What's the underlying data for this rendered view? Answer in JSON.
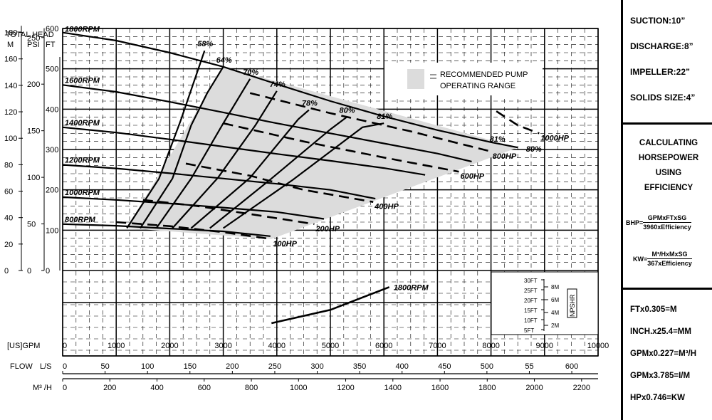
{
  "axis_titles": {
    "total_head": "TOTAL  HEAD",
    "m": "M",
    "psi": "PSI",
    "ft": "FT",
    "gpm": "[US]GPM",
    "flow": "FLOW",
    "ls": "L/S",
    "m3h": "M³ /H"
  },
  "legend": {
    "line1": "RECOMMENDED PUMP",
    "line2": "OPERATING RANGE",
    "fill": "#dcdcdc"
  },
  "npshr": {
    "label": "NPSHR",
    "ft_ticks": [
      "30FT",
      "25FT",
      "20FT",
      "15FT",
      "10FT",
      "5FT"
    ],
    "m_ticks": [
      "8M",
      "6M",
      "4M",
      "2M"
    ]
  },
  "specs": [
    {
      "name": "suction",
      "text": "SUCTION:10”"
    },
    {
      "name": "discharge",
      "text": "DISCHARGE:8”"
    },
    {
      "name": "impeller",
      "text": "IMPELLER:22”"
    },
    {
      "name": "solids",
      "text": "SOLIDS SIZE:4”"
    }
  ],
  "calc": {
    "title_lines": [
      "CALCULATING",
      "HORSEPOWER",
      "USING",
      "EFFICIENCY"
    ],
    "bhp_label": "BHP=",
    "bhp_num": "GPMxFTxSG",
    "bhp_den": "3960xEfficiency",
    "kw_label": "KW=",
    "kw_num": "M³/HxMxSG",
    "kw_den": "367xEfficiency"
  },
  "conversions": [
    "FTx0.305=M",
    "INCH.x25.4=MM",
    "GPMx0.227=M³/H",
    "GPMx3.785=I/M",
    "HPx0.746=KW"
  ],
  "chart_data": {
    "type": "line",
    "xlabel": "[US]GPM",
    "xlim": [
      0,
      10000
    ],
    "ylabel": "FT",
    "ylim": [
      0,
      600
    ],
    "grid": true,
    "gpm_ticks": [
      "0",
      "1000",
      "2000",
      "3000",
      "4000",
      "5000",
      "6000",
      "7000",
      "8000",
      "9000",
      "10000"
    ],
    "ft_ticks": [
      "0",
      "100",
      "200",
      "300",
      "400",
      "500",
      "600"
    ],
    "psi_ticks": [
      "0",
      "50",
      "100",
      "150",
      "200",
      "250"
    ],
    "m_ticks": [
      "0",
      "20",
      "40",
      "60",
      "80",
      "100",
      "120",
      "140",
      "160",
      "180"
    ],
    "ls_ticks": [
      "0",
      "50",
      "100",
      "150",
      "200",
      "250",
      "300",
      "350",
      "400",
      "450",
      "500",
      "55",
      "600"
    ],
    "m3h_ticks": [
      "0",
      "200",
      "400",
      "600",
      "800",
      "1000",
      "1200",
      "1400",
      "1600",
      "1800",
      "2000",
      "2200"
    ],
    "speed_curves": [
      {
        "name": "1800RPM",
        "points": [
          [
            0,
            590
          ],
          [
            1000,
            570
          ],
          [
            2000,
            540
          ],
          [
            3000,
            505
          ],
          [
            4000,
            462
          ],
          [
            5000,
            420
          ],
          [
            6000,
            382
          ],
          [
            7000,
            348
          ],
          [
            8000,
            318
          ],
          [
            8500,
            305
          ]
        ]
      },
      {
        "name": "1600RPM",
        "points": [
          [
            0,
            460
          ],
          [
            1000,
            443
          ],
          [
            2000,
            418
          ],
          [
            3000,
            392
          ],
          [
            4000,
            365
          ],
          [
            5000,
            340
          ],
          [
            6000,
            315
          ],
          [
            7000,
            290
          ],
          [
            7640,
            270
          ]
        ]
      },
      {
        "name": "1400RPM",
        "points": [
          [
            0,
            355
          ],
          [
            1000,
            342
          ],
          [
            2000,
            325
          ],
          [
            3000,
            307
          ],
          [
            4000,
            289
          ],
          [
            5000,
            272
          ],
          [
            6000,
            254
          ],
          [
            6770,
            237
          ]
        ]
      },
      {
        "name": "1200RPM",
        "points": [
          [
            0,
            262
          ],
          [
            1000,
            253
          ],
          [
            2000,
            241
          ],
          [
            3000,
            228
          ],
          [
            4000,
            215
          ],
          [
            5000,
            200
          ],
          [
            5840,
            178
          ]
        ]
      },
      {
        "name": "1000RPM",
        "points": [
          [
            0,
            182
          ],
          [
            1000,
            175
          ],
          [
            2000,
            166
          ],
          [
            3000,
            156
          ],
          [
            4000,
            145
          ],
          [
            4880,
            128
          ]
        ]
      },
      {
        "name": "800RPM",
        "points": [
          [
            0,
            115
          ],
          [
            1000,
            111
          ],
          [
            2000,
            104
          ],
          [
            3000,
            97
          ],
          [
            3880,
            85
          ]
        ]
      }
    ],
    "efficiency_lines": [
      {
        "name": "58%",
        "points": [
          [
            1200,
            105
          ],
          [
            1800,
            228
          ],
          [
            2200,
            370
          ],
          [
            2650,
            545
          ]
        ]
      },
      {
        "name": "64%",
        "points": [
          [
            1450,
            105
          ],
          [
            2050,
            228
          ],
          [
            2400,
            360
          ],
          [
            2700,
            440
          ],
          [
            3000,
            505
          ]
        ]
      },
      {
        "name": "70%",
        "points": [
          [
            1750,
            105
          ],
          [
            2400,
            228
          ],
          [
            3000,
            365
          ],
          [
            3500,
            475
          ]
        ]
      },
      {
        "name": "74%",
        "points": [
          [
            2050,
            105
          ],
          [
            2900,
            230
          ],
          [
            3600,
            360
          ],
          [
            4000,
            445
          ]
        ]
      },
      {
        "name": "78%",
        "points": [
          [
            2400,
            105
          ],
          [
            3500,
            230
          ],
          [
            4400,
            375
          ],
          [
            4600,
            398
          ]
        ]
      },
      {
        "name": "80%",
        "points": [
          [
            2750,
            105
          ],
          [
            3900,
            228
          ],
          [
            5000,
            350
          ],
          [
            5300,
            380
          ]
        ]
      },
      {
        "name": "81%",
        "points": [
          [
            3000,
            105
          ],
          [
            4300,
            225
          ],
          [
            5600,
            355
          ],
          [
            6000,
            365
          ]
        ]
      }
    ],
    "power_lines": [
      {
        "name": "100HP",
        "points": [
          [
            1000,
            120
          ],
          [
            2000,
            110
          ],
          [
            3000,
            95
          ],
          [
            3900,
            78
          ]
        ]
      },
      {
        "name": "200HP",
        "points": [
          [
            1500,
            175
          ],
          [
            2500,
            160
          ],
          [
            3500,
            140
          ],
          [
            4700,
            115
          ]
        ]
      },
      {
        "name": "400HP",
        "points": [
          [
            2300,
            265
          ],
          [
            3500,
            235
          ],
          [
            4500,
            200
          ],
          [
            5800,
            170
          ]
        ]
      },
      {
        "name": "600HP",
        "points": [
          [
            3000,
            365
          ],
          [
            4500,
            320
          ],
          [
            6000,
            280
          ],
          [
            7400,
            245
          ]
        ]
      },
      {
        "name": "800HP",
        "points": [
          [
            3500,
            440
          ],
          [
            5000,
            390
          ],
          [
            6500,
            345
          ],
          [
            8000,
            295
          ]
        ]
      },
      {
        "name": "1000HP",
        "points": [
          [
            8100,
            395
          ],
          [
            8500,
            360
          ],
          [
            8900,
            340
          ]
        ]
      }
    ],
    "bep_81_curve": {
      "name": "81%",
      "points": [
        [
          8000,
          312
        ],
        [
          8500,
          305
        ]
      ]
    },
    "bep_80_curve": {
      "name": "80%",
      "points": [
        [
          8300,
          290
        ],
        [
          8600,
          302
        ]
      ]
    },
    "npshr_curve": {
      "name": "1800RPM",
      "npshr_ft": [
        [
          3900,
          6
        ],
        [
          5000,
          13
        ],
        [
          6100,
          25
        ]
      ]
    },
    "operating_range": [
      [
        1200,
        105
      ],
      [
        3000,
        505
      ],
      [
        8500,
        305
      ],
      [
        3900,
        78
      ]
    ]
  }
}
